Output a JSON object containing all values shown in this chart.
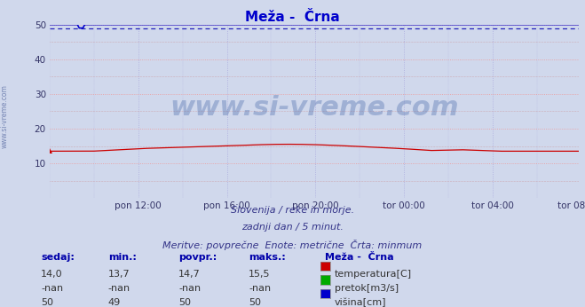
{
  "title": "Meža -  Črna",
  "bg_color": "#d0d8ec",
  "plot_bg_color": "#d0d8ec",
  "ylim": [
    0,
    50
  ],
  "yticks": [
    10,
    20,
    30,
    40,
    50
  ],
  "xtick_labels": [
    "pon 12:00",
    "pon 16:00",
    "pon 20:00",
    "tor 00:00",
    "tor 04:00",
    "tor 08:00"
  ],
  "n_points": 288,
  "temp_color": "#cc0000",
  "flow_color": "#00aa00",
  "height_color": "#0000cc",
  "height_dashed_color": "#2222bb",
  "grid_h_color": "#ee9999",
  "grid_v_color": "#aaaadd",
  "grid_dot_color": "#cc8888",
  "watermark": "www.si-vreme.com",
  "watermark_color": "#4466aa",
  "subtitle1": "Slovenija / reke in morje.",
  "subtitle2": "zadnji dan / 5 minut.",
  "subtitle3": "Meritve: povprečne  Enote: metrične  Črta: minmum",
  "legend_title": "Meža -  Črna",
  "leg_entries": [
    "temperatura[C]",
    "pretok[m3/s]",
    "višina[cm]"
  ],
  "leg_colors": [
    "#cc0000",
    "#00aa00",
    "#0000cc"
  ],
  "table_headers": [
    "sedaj:",
    "min.:",
    "povpr.:",
    "maks.:"
  ],
  "table_row1": [
    "14,0",
    "13,7",
    "14,7",
    "15,5"
  ],
  "table_row2": [
    "-nan",
    "-nan",
    "-nan",
    "-nan"
  ],
  "table_row3": [
    "50",
    "49",
    "50",
    "50"
  ],
  "sidebar_text": "www.si-vreme.com",
  "title_color": "#0000cc",
  "label_color": "#0000aa",
  "text_color": "#333388",
  "table_val_color": "#333333"
}
